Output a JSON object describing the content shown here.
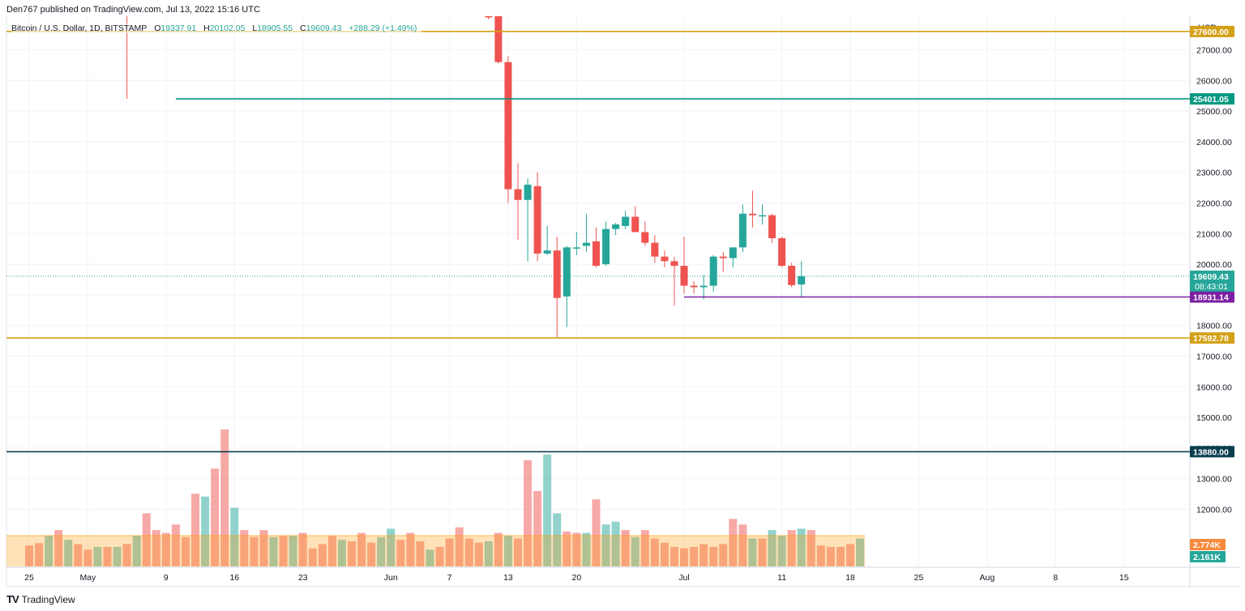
{
  "header": {
    "published": "Den767 published on TradingView.com, Jul 13, 2022 15:16 UTC"
  },
  "legend": {
    "symbol": "Bitcoin / U.S. Dollar, 1D, BITSTAMP",
    "o_label": "O",
    "o_value": "19337.91",
    "h_label": "H",
    "h_value": "20102.05",
    "l_label": "L",
    "l_value": "18905.55",
    "c_label": "C",
    "c_value": "19609.43",
    "change": "+288.29 (+1.49%)"
  },
  "axis": {
    "currency": "USD"
  },
  "footer": {
    "brand": "TradingView",
    "logo": "TV"
  },
  "colors": {
    "up": "#26a69a",
    "down": "#ef5350",
    "gold": "#d4a017",
    "purple": "#7b1fa2",
    "navy": "#0b3d4f"
  },
  "chart_data": {
    "type": "candlestick",
    "title": "",
    "ylim": [
      12400,
      28000
    ],
    "y_ticks": [
      12000,
      13000,
      14000,
      15000,
      16000,
      17000,
      18000,
      19000,
      20000,
      21000,
      22000,
      23000,
      24000,
      25000,
      26000,
      27000
    ],
    "x_ticks": [
      {
        "day": 0,
        "label": "25"
      },
      {
        "day": 6,
        "label": "May"
      },
      {
        "day": 14,
        "label": "9"
      },
      {
        "day": 21,
        "label": "16"
      },
      {
        "day": 28,
        "label": "23"
      },
      {
        "day": 37,
        "label": "Jun"
      },
      {
        "day": 43,
        "label": "7"
      },
      {
        "day": 49,
        "label": "13"
      },
      {
        "day": 56,
        "label": "20"
      },
      {
        "day": 67,
        "label": "Jul"
      },
      {
        "day": 77,
        "label": "11"
      },
      {
        "day": 84,
        "label": "18"
      },
      {
        "day": 91,
        "label": "25"
      },
      {
        "day": 98,
        "label": "Aug"
      },
      {
        "day": 105,
        "label": "8"
      },
      {
        "day": 112,
        "label": "15"
      }
    ],
    "candles": [
      {
        "day": 47,
        "o": 29500,
        "h": 29800,
        "l": 28000,
        "c": 28200
      },
      {
        "day": 48,
        "o": 28200,
        "h": 28300,
        "l": 26550,
        "c": 26600
      },
      {
        "day": 49,
        "o": 26600,
        "h": 26800,
        "l": 22000,
        "c": 22450
      },
      {
        "day": 50,
        "o": 22450,
        "h": 23300,
        "l": 20800,
        "c": 22100
      },
      {
        "day": 51,
        "o": 22100,
        "h": 22800,
        "l": 20100,
        "c": 22600
      },
      {
        "day": 52,
        "o": 22550,
        "h": 23000,
        "l": 20100,
        "c": 20350
      },
      {
        "day": 53,
        "o": 20350,
        "h": 21250,
        "l": 20300,
        "c": 20450
      },
      {
        "day": 54,
        "o": 20450,
        "h": 20900,
        "l": 17600,
        "c": 18900
      },
      {
        "day": 55,
        "o": 18950,
        "h": 20600,
        "l": 17950,
        "c": 20550
      },
      {
        "day": 56,
        "o": 20550,
        "h": 21050,
        "l": 20300,
        "c": 20550
      },
      {
        "day": 57,
        "o": 20600,
        "h": 21650,
        "l": 20400,
        "c": 20700
      },
      {
        "day": 58,
        "o": 20750,
        "h": 21200,
        "l": 19900,
        "c": 19950
      },
      {
        "day": 59,
        "o": 20000,
        "h": 21400,
        "l": 19950,
        "c": 21150
      },
      {
        "day": 60,
        "o": 21150,
        "h": 21350,
        "l": 20950,
        "c": 21300
      },
      {
        "day": 61,
        "o": 21250,
        "h": 21750,
        "l": 21150,
        "c": 21550
      },
      {
        "day": 62,
        "o": 21550,
        "h": 21900,
        "l": 21050,
        "c": 21050
      },
      {
        "day": 63,
        "o": 21050,
        "h": 21400,
        "l": 20600,
        "c": 20700
      },
      {
        "day": 64,
        "o": 20700,
        "h": 20950,
        "l": 20050,
        "c": 20250
      },
      {
        "day": 65,
        "o": 20250,
        "h": 20450,
        "l": 19900,
        "c": 20100
      },
      {
        "day": 66,
        "o": 20100,
        "h": 20250,
        "l": 18650,
        "c": 19950
      },
      {
        "day": 67,
        "o": 19950,
        "h": 20900,
        "l": 19050,
        "c": 19300
      },
      {
        "day": 68,
        "o": 19300,
        "h": 19450,
        "l": 19050,
        "c": 19250
      },
      {
        "day": 69,
        "o": 19250,
        "h": 19650,
        "l": 18850,
        "c": 19300
      },
      {
        "day": 70,
        "o": 19300,
        "h": 20300,
        "l": 19100,
        "c": 20250
      },
      {
        "day": 71,
        "o": 20250,
        "h": 20400,
        "l": 19750,
        "c": 20200
      },
      {
        "day": 72,
        "o": 20200,
        "h": 20550,
        "l": 19900,
        "c": 20550
      },
      {
        "day": 73,
        "o": 20550,
        "h": 21950,
        "l": 20400,
        "c": 21650
      },
      {
        "day": 74,
        "o": 21650,
        "h": 22400,
        "l": 21200,
        "c": 21600
      },
      {
        "day": 75,
        "o": 21600,
        "h": 21950,
        "l": 21300,
        "c": 21600
      },
      {
        "day": 76,
        "o": 21600,
        "h": 21650,
        "l": 20700,
        "c": 20850
      },
      {
        "day": 77,
        "o": 20850,
        "h": 20900,
        "l": 19900,
        "c": 19950
      },
      {
        "day": 78,
        "o": 19950,
        "h": 20050,
        "l": 19250,
        "c": 19320
      },
      {
        "day": 79,
        "o": 19340,
        "h": 20100,
        "l": 18910,
        "c": 19610
      }
    ],
    "pre_wicks": [
      {
        "day": 10,
        "h": 28200,
        "l": 25401,
        "color": "down"
      },
      {
        "day": 47,
        "h": 28050,
        "l": 28000,
        "color": "down"
      }
    ],
    "volume": {
      "ylim": [
        0,
        5000
      ],
      "bars": [
        {
          "day": 0,
          "v": 750,
          "dir": "down"
        },
        {
          "day": 1,
          "v": 830,
          "dir": "down"
        },
        {
          "day": 2,
          "v": 1100,
          "dir": "up"
        },
        {
          "day": 3,
          "v": 1300,
          "dir": "down"
        },
        {
          "day": 4,
          "v": 950,
          "dir": "up"
        },
        {
          "day": 5,
          "v": 800,
          "dir": "down"
        },
        {
          "day": 6,
          "v": 600,
          "dir": "down"
        },
        {
          "day": 7,
          "v": 700,
          "dir": "up"
        },
        {
          "day": 8,
          "v": 700,
          "dir": "down"
        },
        {
          "day": 9,
          "v": 700,
          "dir": "up"
        },
        {
          "day": 10,
          "v": 800,
          "dir": "down"
        },
        {
          "day": 11,
          "v": 1100,
          "dir": "up"
        },
        {
          "day": 12,
          "v": 1900,
          "dir": "down"
        },
        {
          "day": 13,
          "v": 1300,
          "dir": "down"
        },
        {
          "day": 14,
          "v": 1200,
          "dir": "down"
        },
        {
          "day": 15,
          "v": 1500,
          "dir": "down"
        },
        {
          "day": 16,
          "v": 1050,
          "dir": "down"
        },
        {
          "day": 17,
          "v": 2600,
          "dir": "down"
        },
        {
          "day": 18,
          "v": 2500,
          "dir": "up"
        },
        {
          "day": 19,
          "v": 3500,
          "dir": "down"
        },
        {
          "day": 20,
          "v": 4900,
          "dir": "down"
        },
        {
          "day": 21,
          "v": 2100,
          "dir": "up"
        },
        {
          "day": 22,
          "v": 1300,
          "dir": "down"
        },
        {
          "day": 23,
          "v": 1050,
          "dir": "down"
        },
        {
          "day": 24,
          "v": 1300,
          "dir": "down"
        },
        {
          "day": 25,
          "v": 1050,
          "dir": "up"
        },
        {
          "day": 26,
          "v": 1100,
          "dir": "down"
        },
        {
          "day": 27,
          "v": 1100,
          "dir": "up"
        },
        {
          "day": 28,
          "v": 1200,
          "dir": "down"
        },
        {
          "day": 29,
          "v": 650,
          "dir": "down"
        },
        {
          "day": 30,
          "v": 800,
          "dir": "down"
        },
        {
          "day": 31,
          "v": 1100,
          "dir": "down"
        },
        {
          "day": 32,
          "v": 950,
          "dir": "up"
        },
        {
          "day": 33,
          "v": 900,
          "dir": "down"
        },
        {
          "day": 34,
          "v": 1200,
          "dir": "down"
        },
        {
          "day": 35,
          "v": 850,
          "dir": "down"
        },
        {
          "day": 36,
          "v": 1050,
          "dir": "up"
        },
        {
          "day": 37,
          "v": 1350,
          "dir": "up"
        },
        {
          "day": 38,
          "v": 950,
          "dir": "down"
        },
        {
          "day": 39,
          "v": 1200,
          "dir": "down"
        },
        {
          "day": 40,
          "v": 900,
          "dir": "down"
        },
        {
          "day": 41,
          "v": 600,
          "dir": "up"
        },
        {
          "day": 42,
          "v": 700,
          "dir": "down"
        },
        {
          "day": 43,
          "v": 1000,
          "dir": "down"
        },
        {
          "day": 44,
          "v": 1400,
          "dir": "down"
        },
        {
          "day": 45,
          "v": 1000,
          "dir": "down"
        },
        {
          "day": 46,
          "v": 850,
          "dir": "down"
        },
        {
          "day": 47,
          "v": 900,
          "dir": "up"
        },
        {
          "day": 48,
          "v": 1200,
          "dir": "down"
        },
        {
          "day": 49,
          "v": 1100,
          "dir": "up"
        },
        {
          "day": 50,
          "v": 1000,
          "dir": "down"
        },
        {
          "day": 51,
          "v": 3800,
          "dir": "down"
        },
        {
          "day": 52,
          "v": 2700,
          "dir": "down"
        },
        {
          "day": 53,
          "v": 4000,
          "dir": "up"
        },
        {
          "day": 54,
          "v": 1900,
          "dir": "up"
        },
        {
          "day": 55,
          "v": 1250,
          "dir": "down"
        },
        {
          "day": 56,
          "v": 1200,
          "dir": "down"
        },
        {
          "day": 57,
          "v": 1200,
          "dir": "up"
        },
        {
          "day": 58,
          "v": 2400,
          "dir": "down"
        },
        {
          "day": 59,
          "v": 1500,
          "dir": "up"
        },
        {
          "day": 60,
          "v": 1600,
          "dir": "up"
        },
        {
          "day": 61,
          "v": 1300,
          "dir": "down"
        },
        {
          "day": 62,
          "v": 1050,
          "dir": "up"
        },
        {
          "day": 63,
          "v": 1300,
          "dir": "down"
        },
        {
          "day": 64,
          "v": 1000,
          "dir": "down"
        },
        {
          "day": 65,
          "v": 850,
          "dir": "down"
        },
        {
          "day": 66,
          "v": 700,
          "dir": "down"
        },
        {
          "day": 67,
          "v": 650,
          "dir": "down"
        },
        {
          "day": 68,
          "v": 700,
          "dir": "down"
        },
        {
          "day": 69,
          "v": 800,
          "dir": "down"
        },
        {
          "day": 70,
          "v": 700,
          "dir": "down"
        },
        {
          "day": 71,
          "v": 800,
          "dir": "down"
        },
        {
          "day": 72,
          "v": 1700,
          "dir": "down"
        },
        {
          "day": 73,
          "v": 1500,
          "dir": "down"
        },
        {
          "day": 74,
          "v": 1000,
          "dir": "up"
        },
        {
          "day": 75,
          "v": 1000,
          "dir": "down"
        },
        {
          "day": 76,
          "v": 1300,
          "dir": "up"
        },
        {
          "day": 77,
          "v": 1100,
          "dir": "up"
        },
        {
          "day": 78,
          "v": 1300,
          "dir": "down"
        },
        {
          "day": 79,
          "v": 1350,
          "dir": "up"
        },
        {
          "day": 80,
          "v": 1300,
          "dir": "down"
        },
        {
          "day": 81,
          "v": 750,
          "dir": "down"
        },
        {
          "day": 82,
          "v": 700,
          "dir": "down"
        },
        {
          "day": 83,
          "v": 700,
          "dir": "down"
        },
        {
          "day": 84,
          "v": 800,
          "dir": "down"
        },
        {
          "day": 85,
          "v": 1000,
          "dir": "up"
        }
      ],
      "ma": 1100
    },
    "horizontal_lines": [
      {
        "price": 27600,
        "color": "gold",
        "label": "27600.00",
        "from_day": -1,
        "badge": "gold"
      },
      {
        "price": 25401.05,
        "color": "teal",
        "label": "25401.05",
        "from_day": 15,
        "badge": "teal"
      },
      {
        "price": 18931.14,
        "color": "purple",
        "label": "18931.14",
        "from_day": 67,
        "to_day": 79,
        "badge": "purple"
      },
      {
        "price": 17592.78,
        "color": "gold",
        "label": "17592.78",
        "from_day": -1,
        "badge": "gold"
      },
      {
        "price": 13880.0,
        "color": "navy",
        "label": "13880.00",
        "from_day": -1,
        "badge": "navy"
      }
    ],
    "last_price": {
      "value": "19609.43",
      "countdown": "08:43:01",
      "price": 19609.43
    },
    "volume_labels": [
      {
        "text": "2.774K",
        "color": "#f68a3c"
      },
      {
        "text": "2.161K",
        "color": "#26a69a"
      }
    ]
  }
}
